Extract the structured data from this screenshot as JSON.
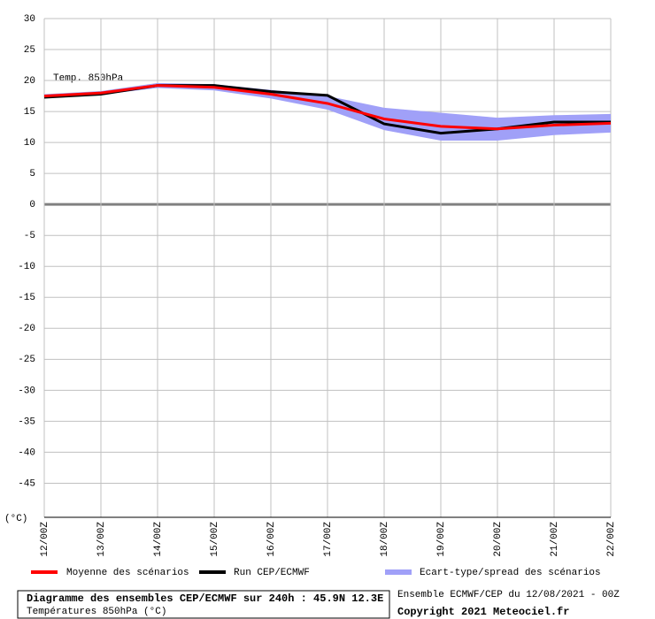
{
  "chart_data": {
    "type": "line",
    "annotation": "Temp. 850hPa",
    "y_unit": "(°C)",
    "categories": [
      "12/00Z",
      "13/00Z",
      "14/00Z",
      "15/00Z",
      "16/00Z",
      "17/00Z",
      "18/00Z",
      "19/00Z",
      "20/00Z",
      "21/00Z",
      "22/00Z"
    ],
    "series": [
      {
        "name": "Moyenne des scénarios",
        "color": "#ff0000",
        "values": [
          17.5,
          18.0,
          19.2,
          18.9,
          17.8,
          16.3,
          13.8,
          12.6,
          12.2,
          12.8,
          13.1
        ]
      },
      {
        "name": "Run CEP/ECMWF",
        "color": "#000000",
        "values": [
          17.3,
          17.8,
          19.2,
          19.2,
          18.2,
          17.6,
          13.0,
          11.5,
          12.2,
          13.3,
          13.3
        ]
      },
      {
        "name": "Ecart-type/spread des scénarios",
        "color": "#a0a0f8",
        "values": [
          17.8,
          18.3,
          19.6,
          19.4,
          18.5,
          17.5,
          15.6,
          14.8,
          14.0,
          14.4,
          14.6
        ],
        "lower": [
          17.2,
          17.7,
          18.8,
          18.4,
          17.1,
          15.3,
          12.0,
          10.3,
          10.3,
          11.2,
          11.6
        ]
      }
    ],
    "ylim": [
      -50.5,
      30
    ],
    "yticks": [
      30,
      25,
      20,
      15,
      10,
      5,
      0,
      -5,
      -10,
      -15,
      -20,
      -25,
      -30,
      -35,
      -40,
      -45
    ],
    "grid": true,
    "footer": {
      "title": "Diagramme des ensembles CEP/ECMWF sur 240h : 45.9N 12.3E",
      "subtitle": "Températures 850hPa (°C)",
      "run": "Ensemble ECMWF/CEP du 12/08/2021 - 00Z",
      "copyright": "Copyright 2021 Meteociel.fr"
    }
  }
}
